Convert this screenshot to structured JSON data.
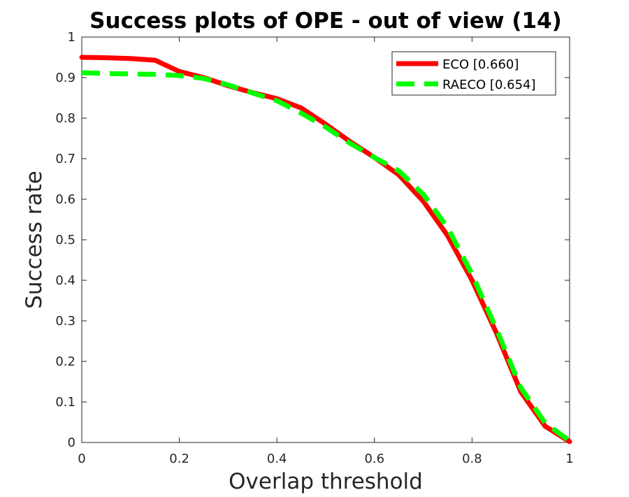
{
  "chart_data": {
    "type": "line",
    "title": "Success plots of OPE - out of view (14)",
    "xlabel": "Overlap threshold",
    "ylabel": "Success rate",
    "xlim": [
      0,
      1
    ],
    "ylim": [
      0,
      1
    ],
    "x_ticks": [
      0,
      0.2,
      0.4,
      0.6,
      0.8,
      1
    ],
    "x_tick_labels": [
      "0",
      "0.2",
      "0.4",
      "0.6",
      "0.8",
      "1"
    ],
    "y_ticks": [
      0,
      0.1,
      0.2,
      0.3,
      0.4,
      0.5,
      0.6,
      0.7,
      0.8,
      0.9,
      1
    ],
    "y_tick_labels": [
      "0",
      "0.1",
      "0.2",
      "0.3",
      "0.4",
      "0.5",
      "0.6",
      "0.7",
      "0.8",
      "0.9",
      "1"
    ],
    "grid": false,
    "legend_position": "top-right",
    "x": [
      0,
      0.05,
      0.1,
      0.15,
      0.2,
      0.25,
      0.3,
      0.35,
      0.4,
      0.45,
      0.5,
      0.55,
      0.6,
      0.65,
      0.7,
      0.75,
      0.8,
      0.85,
      0.9,
      0.95,
      1
    ],
    "series": [
      {
        "name": "ECO [0.660]",
        "color": "#ff0000",
        "style": "solid",
        "values": [
          0.95,
          0.949,
          0.947,
          0.943,
          0.915,
          0.9,
          0.88,
          0.863,
          0.848,
          0.825,
          0.785,
          0.742,
          0.703,
          0.66,
          0.595,
          0.51,
          0.4,
          0.27,
          0.125,
          0.04,
          0.002
        ]
      },
      {
        "name": "RAECO [0.654]",
        "color": "#00ff00",
        "style": "dashed",
        "values": [
          0.912,
          0.91,
          0.909,
          0.908,
          0.905,
          0.898,
          0.882,
          0.862,
          0.843,
          0.812,
          0.778,
          0.738,
          0.703,
          0.67,
          0.612,
          0.53,
          0.415,
          0.28,
          0.135,
          0.048,
          0.004
        ]
      }
    ]
  }
}
